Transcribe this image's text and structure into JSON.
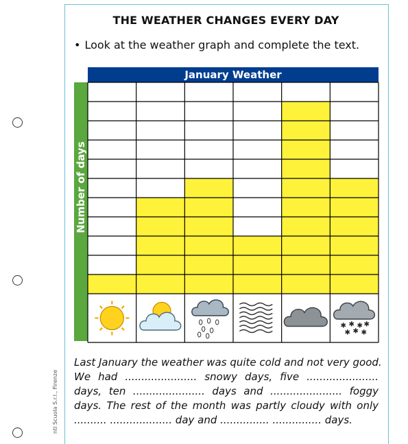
{
  "page": {
    "title": "THE WEATHER CHANGES EVERY DAY",
    "instruction": "Look at the weather graph and complete the text.",
    "bullet": "•",
    "credit": "nti Scuola S.r.l., Firenze"
  },
  "chart_data": {
    "type": "bar",
    "title": "January Weather",
    "ylabel": "Number of days",
    "categories": [
      "sunny",
      "partly cloudy",
      "rainy",
      "foggy",
      "cloudy",
      "snowy"
    ],
    "values": [
      1,
      5,
      6,
      3,
      10,
      6
    ],
    "ylim": [
      0,
      11
    ],
    "grid": true,
    "colors": {
      "bar": "#fff23a",
      "grid": "#000000",
      "header": "#003d8f",
      "axis_band": "#5aa83e"
    },
    "icons": [
      "sun-icon",
      "partly-cloudy-icon",
      "rain-cloud-icon",
      "fog-icon",
      "cloud-icon",
      "snow-cloud-icon"
    ]
  },
  "text": {
    "lines": [
      "Last January the weather was quite cold and not very good.",
      "We had ...................... snowy days, five ......................",
      "days, ten ...................... days and ...................... foggy",
      "days. The rest of the month was partly cloudy with only",
      ".......... ................... day and ............... ............... days."
    ]
  }
}
